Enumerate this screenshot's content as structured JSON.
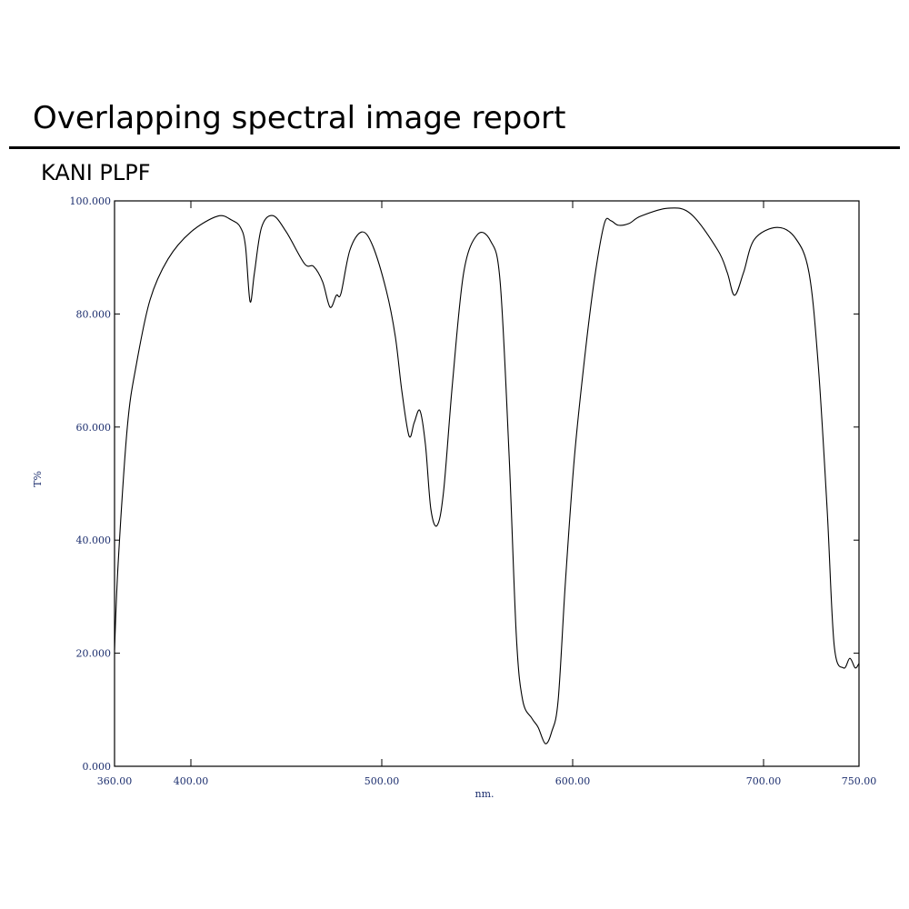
{
  "report_title": "Overlapping spectral image report",
  "sample_name": "KANI PLPF",
  "chart_data": {
    "type": "line",
    "xlabel": "nm.",
    "ylabel": "T%",
    "xlim": [
      360,
      750
    ],
    "ylim": [
      0,
      100
    ],
    "x_ticks": [
      360,
      400,
      500,
      600,
      700,
      750
    ],
    "x_tick_labels": [
      "360.00",
      "400.00",
      "500.00",
      "600.00",
      "700.00",
      "750.00"
    ],
    "y_ticks": [
      0,
      20,
      40,
      60,
      80,
      100
    ],
    "y_tick_labels": [
      "0.000",
      "20.000",
      "40.000",
      "60.000",
      "80.000",
      "100.000"
    ],
    "grid": false,
    "line_color": "#000000",
    "tick_label_color": "#1c2e6e",
    "series": [
      {
        "x": [
          360,
          361.9,
          366.7,
          371.4,
          378.6,
          388,
          400,
          414,
          421.4,
          426,
          428.6,
          431,
          433.3,
          437,
          442.9,
          450,
          459.5,
          464.3,
          469,
          472.9,
          476.2,
          478.6,
          483.3,
          489.5,
          495.2,
          502.4,
          507.1,
          510.5,
          514.3,
          517,
          520,
          522.9,
          525.7,
          529,
          532.4,
          537.1,
          542.9,
          550,
          557,
          562,
          566.7,
          570.5,
          573.8,
          578.6,
          581.9,
          585.7,
          589,
          592.4,
          596.2,
          601,
          607,
          611.9,
          616.7,
          620,
          623.8,
          629.5,
          635.7,
          650,
          661.9,
          676,
          681,
          684.8,
          689.5,
          695.2,
          707,
          716.7,
          723.8,
          728.6,
          733.3,
          737,
          741.9,
          745.2,
          748,
          750
        ],
        "y": [
          20.6,
          35.9,
          60,
          71,
          82.5,
          89.7,
          94.5,
          97.3,
          96.6,
          95.3,
          92,
          82.2,
          87.3,
          95.3,
          97.4,
          94.5,
          88.9,
          88.4,
          85.7,
          81.2,
          83.3,
          83.6,
          91.3,
          94.5,
          92.1,
          84.1,
          76,
          66.4,
          58.4,
          60.8,
          62.9,
          56.8,
          45.5,
          42.6,
          48.7,
          68,
          87.3,
          94,
          92.9,
          85.7,
          55,
          23,
          11.7,
          8.5,
          6.9,
          4,
          6.1,
          11.7,
          32.6,
          55,
          74.4,
          87.3,
          96.1,
          96.5,
          95.7,
          96,
          97.3,
          98.7,
          97.7,
          91.3,
          87.3,
          83.3,
          87.3,
          93.2,
          95.3,
          93.4,
          87.3,
          71.2,
          45.5,
          21.4,
          17.4,
          19.1,
          17.4,
          18.2
        ]
      }
    ]
  }
}
